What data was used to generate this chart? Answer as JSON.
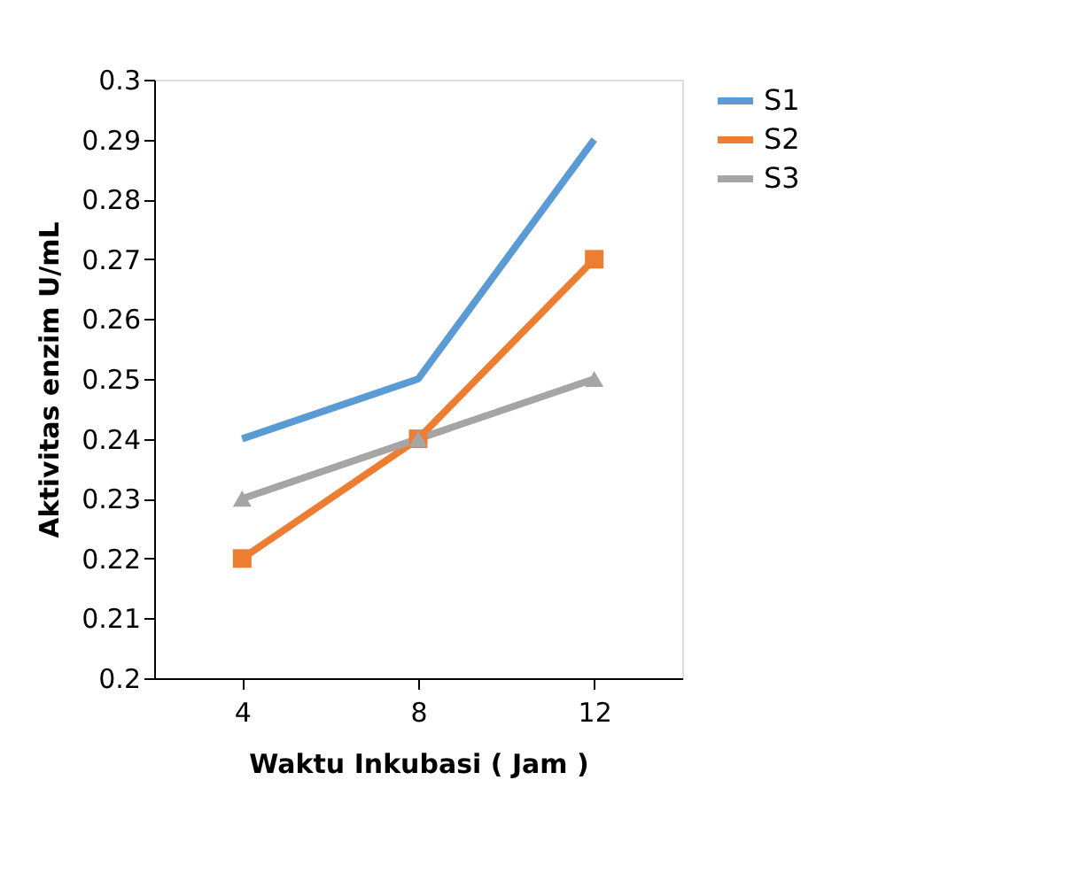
{
  "chart_data": {
    "type": "line",
    "xlabel": "Waktu Inkubasi ( Jam )",
    "ylabel": "Aktivitas enzim U/mL",
    "categories": [
      "4",
      "8",
      "12"
    ],
    "series": [
      {
        "name": "S1",
        "color": "#5b9bd5",
        "marker": "none",
        "values": [
          0.24,
          0.25,
          0.29
        ]
      },
      {
        "name": "S2",
        "color": "#ed7d31",
        "marker": "square",
        "values": [
          0.22,
          0.24,
          0.27
        ]
      },
      {
        "name": "S3",
        "color": "#a5a5a5",
        "marker": "triangle",
        "values": [
          0.23,
          0.24,
          0.25
        ]
      }
    ],
    "ylim": [
      0.2,
      0.3
    ],
    "yticks": [
      0.2,
      0.21,
      0.22,
      0.23,
      0.24,
      0.25,
      0.26,
      0.27,
      0.28,
      0.29,
      0.3
    ],
    "grid": false,
    "legend": "right",
    "line_style": "solid"
  }
}
